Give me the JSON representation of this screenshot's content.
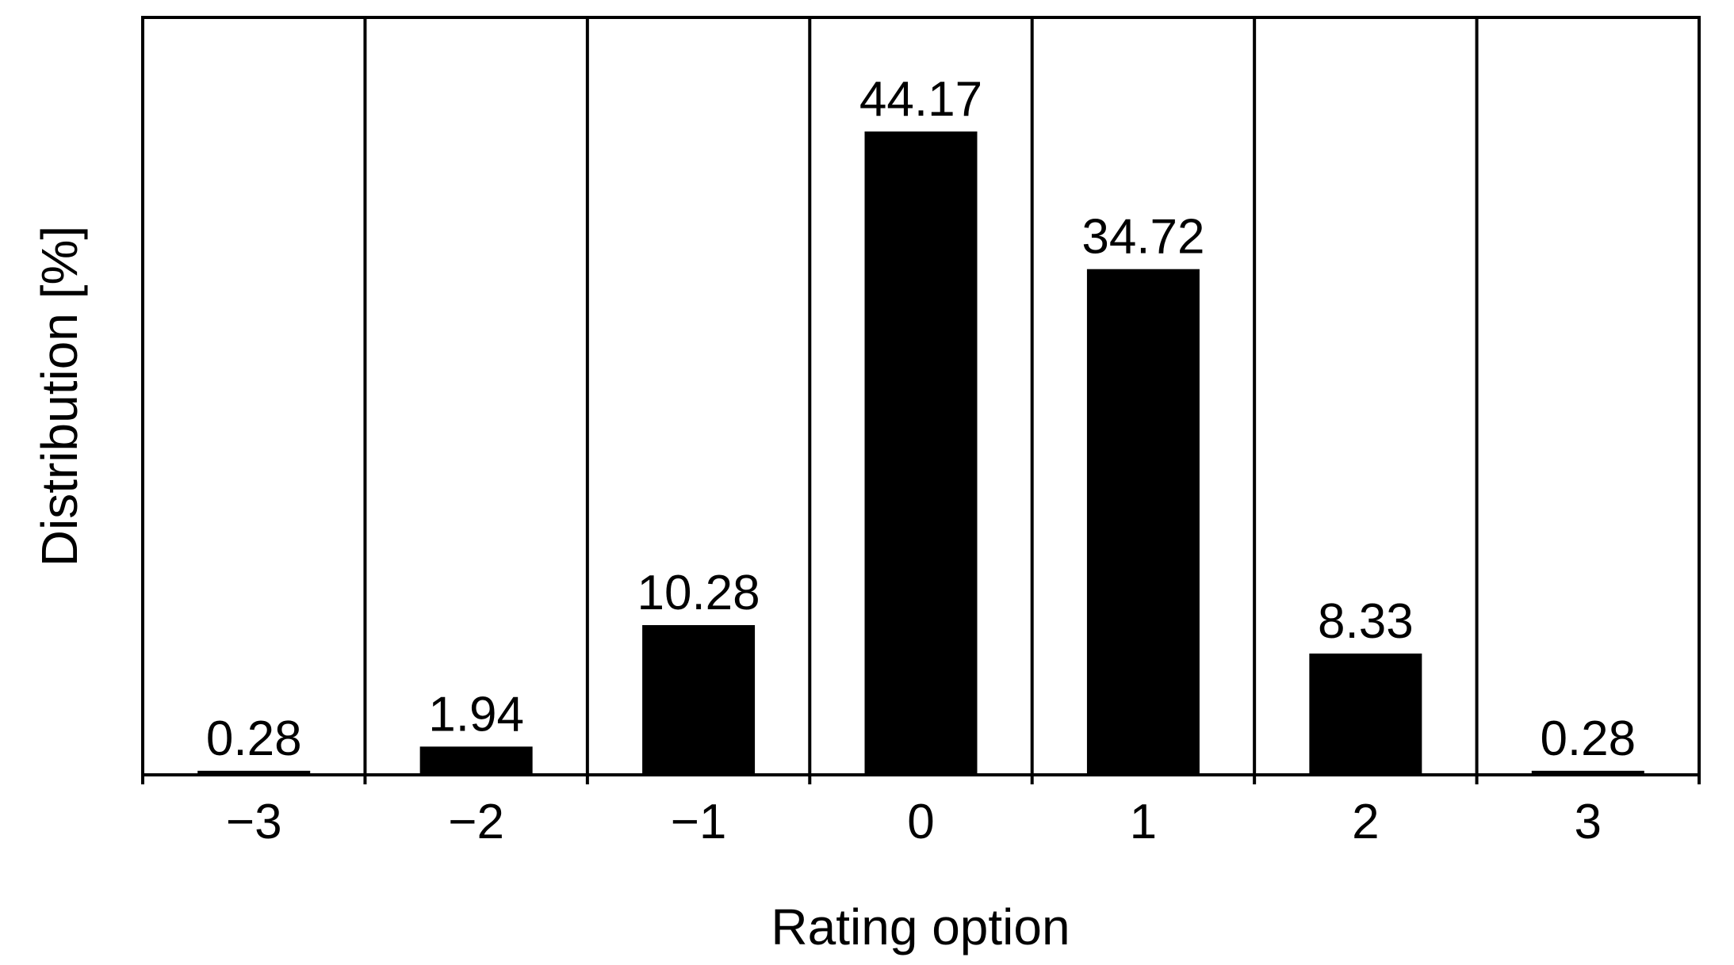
{
  "chart_data": {
    "type": "bar",
    "title": "",
    "xlabel": "Rating option",
    "ylabel": "Distribution [%]",
    "categories": [
      "−3",
      "−2",
      "−1",
      "0",
      "1",
      "2",
      "3"
    ],
    "values": [
      0.28,
      1.94,
      10.28,
      44.17,
      34.72,
      8.33,
      0.28
    ],
    "value_labels": [
      "0.28",
      "1.94",
      "10.28",
      "44.17",
      "34.72",
      "8.33",
      "0.28"
    ],
    "ylim": [
      0,
      52
    ],
    "grid": "vertical separators between categories",
    "legend": "none",
    "bar_color": "#000000",
    "frame_color": "#000000"
  }
}
